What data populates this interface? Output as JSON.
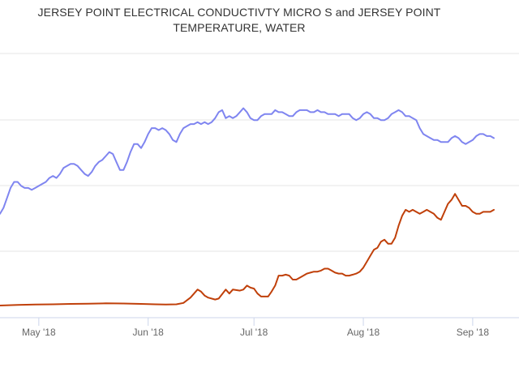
{
  "chart_data": {
    "type": "line",
    "title_lines": [
      "JERSEY POINT ELECTRICAL CONDUCTIVTY MICRO S and JERSEY POINT",
      "TEMPERATURE, WATER"
    ],
    "x_tick_labels": [
      "May '18",
      "Jun '18",
      "Jul '18",
      "Aug '18",
      "Sep '18"
    ],
    "x_tick_dates": [
      "2018-05-01",
      "2018-06-01",
      "2018-07-01",
      "2018-08-01",
      "2018-09-01"
    ],
    "xlim": [
      "2018-04-20",
      "2018-09-10"
    ],
    "ylim": [
      0,
      100
    ],
    "grid": true,
    "series": [
      {
        "color": "#7f85f0",
        "points": [
          [
            "2018-04-20",
            46
          ],
          [
            "2018-04-21",
            49
          ],
          [
            "2018-04-22",
            54
          ],
          [
            "2018-04-23",
            59
          ],
          [
            "2018-04-24",
            62
          ],
          [
            "2018-04-25",
            62
          ],
          [
            "2018-04-26",
            60
          ],
          [
            "2018-04-27",
            59
          ],
          [
            "2018-04-28",
            59
          ],
          [
            "2018-04-29",
            58
          ],
          [
            "2018-04-30",
            59
          ],
          [
            "2018-05-01",
            60
          ],
          [
            "2018-05-02",
            61
          ],
          [
            "2018-05-03",
            62
          ],
          [
            "2018-05-04",
            64
          ],
          [
            "2018-05-05",
            65
          ],
          [
            "2018-05-06",
            64
          ],
          [
            "2018-05-07",
            66
          ],
          [
            "2018-05-08",
            69
          ],
          [
            "2018-05-09",
            70
          ],
          [
            "2018-05-10",
            71
          ],
          [
            "2018-05-11",
            71
          ],
          [
            "2018-05-12",
            70
          ],
          [
            "2018-05-13",
            68
          ],
          [
            "2018-05-14",
            66
          ],
          [
            "2018-05-15",
            65
          ],
          [
            "2018-05-16",
            67
          ],
          [
            "2018-05-17",
            70
          ],
          [
            "2018-05-18",
            72
          ],
          [
            "2018-05-19",
            73
          ],
          [
            "2018-05-20",
            75
          ],
          [
            "2018-05-21",
            77
          ],
          [
            "2018-05-22",
            76
          ],
          [
            "2018-05-23",
            72
          ],
          [
            "2018-05-24",
            68
          ],
          [
            "2018-05-25",
            68
          ],
          [
            "2018-05-26",
            72
          ],
          [
            "2018-05-27",
            77
          ],
          [
            "2018-05-28",
            81
          ],
          [
            "2018-05-29",
            81
          ],
          [
            "2018-05-30",
            79
          ],
          [
            "2018-05-31",
            82
          ],
          [
            "2018-06-01",
            86
          ],
          [
            "2018-06-02",
            89
          ],
          [
            "2018-06-03",
            89
          ],
          [
            "2018-06-04",
            88
          ],
          [
            "2018-06-05",
            89
          ],
          [
            "2018-06-06",
            88
          ],
          [
            "2018-06-07",
            86
          ],
          [
            "2018-06-08",
            83
          ],
          [
            "2018-06-09",
            82
          ],
          [
            "2018-06-10",
            86
          ],
          [
            "2018-06-11",
            89
          ],
          [
            "2018-06-12",
            90
          ],
          [
            "2018-06-13",
            91
          ],
          [
            "2018-06-14",
            91
          ],
          [
            "2018-06-15",
            92
          ],
          [
            "2018-06-16",
            91
          ],
          [
            "2018-06-17",
            92
          ],
          [
            "2018-06-18",
            91
          ],
          [
            "2018-06-19",
            92
          ],
          [
            "2018-06-20",
            94
          ],
          [
            "2018-06-21",
            97
          ],
          [
            "2018-06-22",
            98
          ],
          [
            "2018-06-23",
            94
          ],
          [
            "2018-06-24",
            95
          ],
          [
            "2018-06-25",
            94
          ],
          [
            "2018-06-26",
            95
          ],
          [
            "2018-06-27",
            97
          ],
          [
            "2018-06-28",
            99
          ],
          [
            "2018-06-29",
            97
          ],
          [
            "2018-06-30",
            94
          ],
          [
            "2018-07-01",
            93
          ],
          [
            "2018-07-02",
            93
          ],
          [
            "2018-07-03",
            95
          ],
          [
            "2018-07-04",
            96
          ],
          [
            "2018-07-05",
            96
          ],
          [
            "2018-07-06",
            96
          ],
          [
            "2018-07-07",
            98
          ],
          [
            "2018-07-08",
            97
          ],
          [
            "2018-07-09",
            97
          ],
          [
            "2018-07-10",
            96
          ],
          [
            "2018-07-11",
            95
          ],
          [
            "2018-07-12",
            95
          ],
          [
            "2018-07-13",
            97
          ],
          [
            "2018-07-14",
            98
          ],
          [
            "2018-07-15",
            98
          ],
          [
            "2018-07-16",
            98
          ],
          [
            "2018-07-17",
            97
          ],
          [
            "2018-07-18",
            97
          ],
          [
            "2018-07-19",
            98
          ],
          [
            "2018-07-20",
            97
          ],
          [
            "2018-07-21",
            97
          ],
          [
            "2018-07-22",
            96
          ],
          [
            "2018-07-23",
            96
          ],
          [
            "2018-07-24",
            96
          ],
          [
            "2018-07-25",
            95
          ],
          [
            "2018-07-26",
            96
          ],
          [
            "2018-07-27",
            96
          ],
          [
            "2018-07-28",
            96
          ],
          [
            "2018-07-29",
            94
          ],
          [
            "2018-07-30",
            93
          ],
          [
            "2018-07-31",
            94
          ],
          [
            "2018-08-01",
            96
          ],
          [
            "2018-08-02",
            97
          ],
          [
            "2018-08-03",
            96
          ],
          [
            "2018-08-04",
            94
          ],
          [
            "2018-08-05",
            94
          ],
          [
            "2018-08-06",
            93
          ],
          [
            "2018-08-07",
            93
          ],
          [
            "2018-08-08",
            94
          ],
          [
            "2018-08-09",
            96
          ],
          [
            "2018-08-10",
            97
          ],
          [
            "2018-08-11",
            98
          ],
          [
            "2018-08-12",
            97
          ],
          [
            "2018-08-13",
            95
          ],
          [
            "2018-08-14",
            95
          ],
          [
            "2018-08-15",
            94
          ],
          [
            "2018-08-16",
            93
          ],
          [
            "2018-08-17",
            89
          ],
          [
            "2018-08-18",
            86
          ],
          [
            "2018-08-19",
            85
          ],
          [
            "2018-08-20",
            84
          ],
          [
            "2018-08-21",
            83
          ],
          [
            "2018-08-22",
            83
          ],
          [
            "2018-08-23",
            82
          ],
          [
            "2018-08-24",
            82
          ],
          [
            "2018-08-25",
            82
          ],
          [
            "2018-08-26",
            84
          ],
          [
            "2018-08-27",
            85
          ],
          [
            "2018-08-28",
            84
          ],
          [
            "2018-08-29",
            82
          ],
          [
            "2018-08-30",
            81
          ],
          [
            "2018-08-31",
            82
          ],
          [
            "2018-09-01",
            83
          ],
          [
            "2018-09-02",
            85
          ],
          [
            "2018-09-03",
            86
          ],
          [
            "2018-09-04",
            86
          ],
          [
            "2018-09-05",
            85
          ],
          [
            "2018-09-06",
            85
          ],
          [
            "2018-09-07",
            84
          ]
        ]
      },
      {
        "color": "#c0400a",
        "points": [
          [
            "2018-04-20",
            0
          ],
          [
            "2018-04-25",
            0.3
          ],
          [
            "2018-04-30",
            0.5
          ],
          [
            "2018-05-05",
            0.6
          ],
          [
            "2018-05-10",
            0.8
          ],
          [
            "2018-05-15",
            0.9
          ],
          [
            "2018-05-20",
            1.1
          ],
          [
            "2018-05-25",
            1.0
          ],
          [
            "2018-05-30",
            0.8
          ],
          [
            "2018-06-03",
            0.6
          ],
          [
            "2018-06-06",
            0.5
          ],
          [
            "2018-06-09",
            0.6
          ],
          [
            "2018-06-11",
            1.3
          ],
          [
            "2018-06-13",
            4
          ],
          [
            "2018-06-15",
            8
          ],
          [
            "2018-06-16",
            7
          ],
          [
            "2018-06-17",
            5
          ],
          [
            "2018-06-18",
            4
          ],
          [
            "2018-06-20",
            3
          ],
          [
            "2018-06-21",
            3.5
          ],
          [
            "2018-06-23",
            8
          ],
          [
            "2018-06-24",
            6
          ],
          [
            "2018-06-25",
            8
          ],
          [
            "2018-06-27",
            7.5
          ],
          [
            "2018-06-28",
            8
          ],
          [
            "2018-06-29",
            10
          ],
          [
            "2018-06-30",
            9
          ],
          [
            "2018-07-01",
            8.5
          ],
          [
            "2018-07-02",
            6
          ],
          [
            "2018-07-03",
            4.5
          ],
          [
            "2018-07-05",
            4.5
          ],
          [
            "2018-07-06",
            7
          ],
          [
            "2018-07-07",
            10
          ],
          [
            "2018-07-08",
            15
          ],
          [
            "2018-07-09",
            15
          ],
          [
            "2018-07-10",
            15.5
          ],
          [
            "2018-07-11",
            15
          ],
          [
            "2018-07-12",
            13
          ],
          [
            "2018-07-13",
            13
          ],
          [
            "2018-07-14",
            14
          ],
          [
            "2018-07-15",
            15
          ],
          [
            "2018-07-16",
            16
          ],
          [
            "2018-07-17",
            16.5
          ],
          [
            "2018-07-18",
            17
          ],
          [
            "2018-07-19",
            17
          ],
          [
            "2018-07-20",
            17.5
          ],
          [
            "2018-07-21",
            18.5
          ],
          [
            "2018-07-22",
            18.5
          ],
          [
            "2018-07-23",
            17.5
          ],
          [
            "2018-07-24",
            16.5
          ],
          [
            "2018-07-25",
            16
          ],
          [
            "2018-07-26",
            16
          ],
          [
            "2018-07-27",
            15
          ],
          [
            "2018-07-28",
            15
          ],
          [
            "2018-07-29",
            15.5
          ],
          [
            "2018-07-30",
            16
          ],
          [
            "2018-07-31",
            17
          ],
          [
            "2018-08-01",
            19
          ],
          [
            "2018-08-02",
            22
          ],
          [
            "2018-08-03",
            25
          ],
          [
            "2018-08-04",
            28
          ],
          [
            "2018-08-05",
            29
          ],
          [
            "2018-08-06",
            32
          ],
          [
            "2018-08-07",
            33
          ],
          [
            "2018-08-08",
            31
          ],
          [
            "2018-08-09",
            31
          ],
          [
            "2018-08-10",
            34
          ],
          [
            "2018-08-11",
            40
          ],
          [
            "2018-08-12",
            45
          ],
          [
            "2018-08-13",
            48
          ],
          [
            "2018-08-14",
            47
          ],
          [
            "2018-08-15",
            48
          ],
          [
            "2018-08-16",
            47
          ],
          [
            "2018-08-17",
            46
          ],
          [
            "2018-08-18",
            47
          ],
          [
            "2018-08-19",
            48
          ],
          [
            "2018-08-20",
            47
          ],
          [
            "2018-08-21",
            46
          ],
          [
            "2018-08-22",
            44
          ],
          [
            "2018-08-23",
            43
          ],
          [
            "2018-08-24",
            47
          ],
          [
            "2018-08-25",
            51
          ],
          [
            "2018-08-26",
            53
          ],
          [
            "2018-08-27",
            56
          ],
          [
            "2018-08-28",
            53
          ],
          [
            "2018-08-29",
            50
          ],
          [
            "2018-08-30",
            50
          ],
          [
            "2018-08-31",
            49
          ],
          [
            "2018-09-01",
            47
          ],
          [
            "2018-09-02",
            46
          ],
          [
            "2018-09-03",
            46
          ],
          [
            "2018-09-04",
            47
          ],
          [
            "2018-09-05",
            47
          ],
          [
            "2018-09-06",
            47
          ],
          [
            "2018-09-07",
            48
          ]
        ]
      }
    ]
  }
}
